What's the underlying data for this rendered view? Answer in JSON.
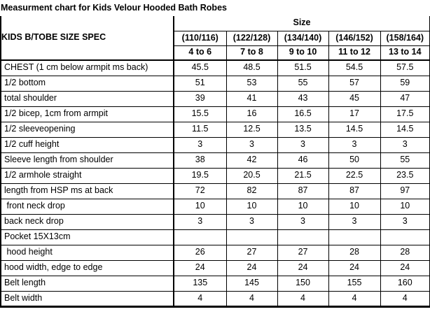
{
  "title": "Measurment chart for Kids Velour Hooded Bath Robes",
  "table": {
    "spec_header": "KIDS B/TOBE SIZE SPEC",
    "size_header": "Size",
    "size_ranges": [
      "(110/116)",
      "(122/128)",
      "(134/140)",
      "(146/152)",
      "(158/164)"
    ],
    "age_ranges": [
      "4 to 6",
      "7 to 8",
      "9 to 10",
      "11 to 12",
      "13 to 14"
    ],
    "rows": [
      {
        "label": "CHEST (1 cm below armpit ms back)",
        "values": [
          "45.5",
          "48.5",
          "51.5",
          "54.5",
          "57.5"
        ]
      },
      {
        "label": "1/2 bottom",
        "values": [
          "51",
          "53",
          "55",
          "57",
          "59"
        ]
      },
      {
        "label": "total shoulder",
        "values": [
          "39",
          "41",
          "43",
          "45",
          "47"
        ]
      },
      {
        "label": "1/2 bicep, 1cm from armpit",
        "values": [
          "15.5",
          "16",
          "16.5",
          "17",
          "17.5"
        ]
      },
      {
        "label": "1/2 sleeveopening",
        "values": [
          "11.5",
          "12.5",
          "13.5",
          "14.5",
          "14.5"
        ]
      },
      {
        "label": "1/2 cuff height",
        "values": [
          "3",
          "3",
          "3",
          "3",
          "3"
        ]
      },
      {
        "label": "Sleeve length from shoulder",
        "values": [
          "38",
          "42",
          "46",
          "50",
          "55"
        ]
      },
      {
        "label": "1/2 armhole straight",
        "values": [
          "19.5",
          "20.5",
          "21.5",
          "22.5",
          "23.5"
        ]
      },
      {
        "label": "length from HSP ms at back",
        "values": [
          "72",
          "82",
          "87",
          "87",
          "97"
        ]
      },
      {
        "label": " front neck drop",
        "values": [
          "10",
          "10",
          "10",
          "10",
          "10"
        ]
      },
      {
        "label": "back neck drop",
        "values": [
          "3",
          "3",
          "3",
          "3",
          "3"
        ]
      },
      {
        "label": "Pocket 15X13cm",
        "values": [
          "",
          "",
          "",
          "",
          ""
        ]
      },
      {
        "label": " hood height",
        "values": [
          "26",
          "27",
          "27",
          "28",
          "28"
        ]
      },
      {
        "label": "hood width, edge to edge",
        "values": [
          "24",
          "24",
          "24",
          "24",
          "24"
        ]
      },
      {
        "label": "Belt length",
        "values": [
          "135",
          "145",
          "150",
          "155",
          "160"
        ]
      },
      {
        "label": "Belt width",
        "values": [
          "4",
          "4",
          "4",
          "4",
          "4"
        ]
      }
    ]
  },
  "colors": {
    "border_heavy": "#000000",
    "border_thin": "#000000",
    "title_faint_border": "#c6c6c6",
    "text": "#000000",
    "background": "#ffffff"
  }
}
